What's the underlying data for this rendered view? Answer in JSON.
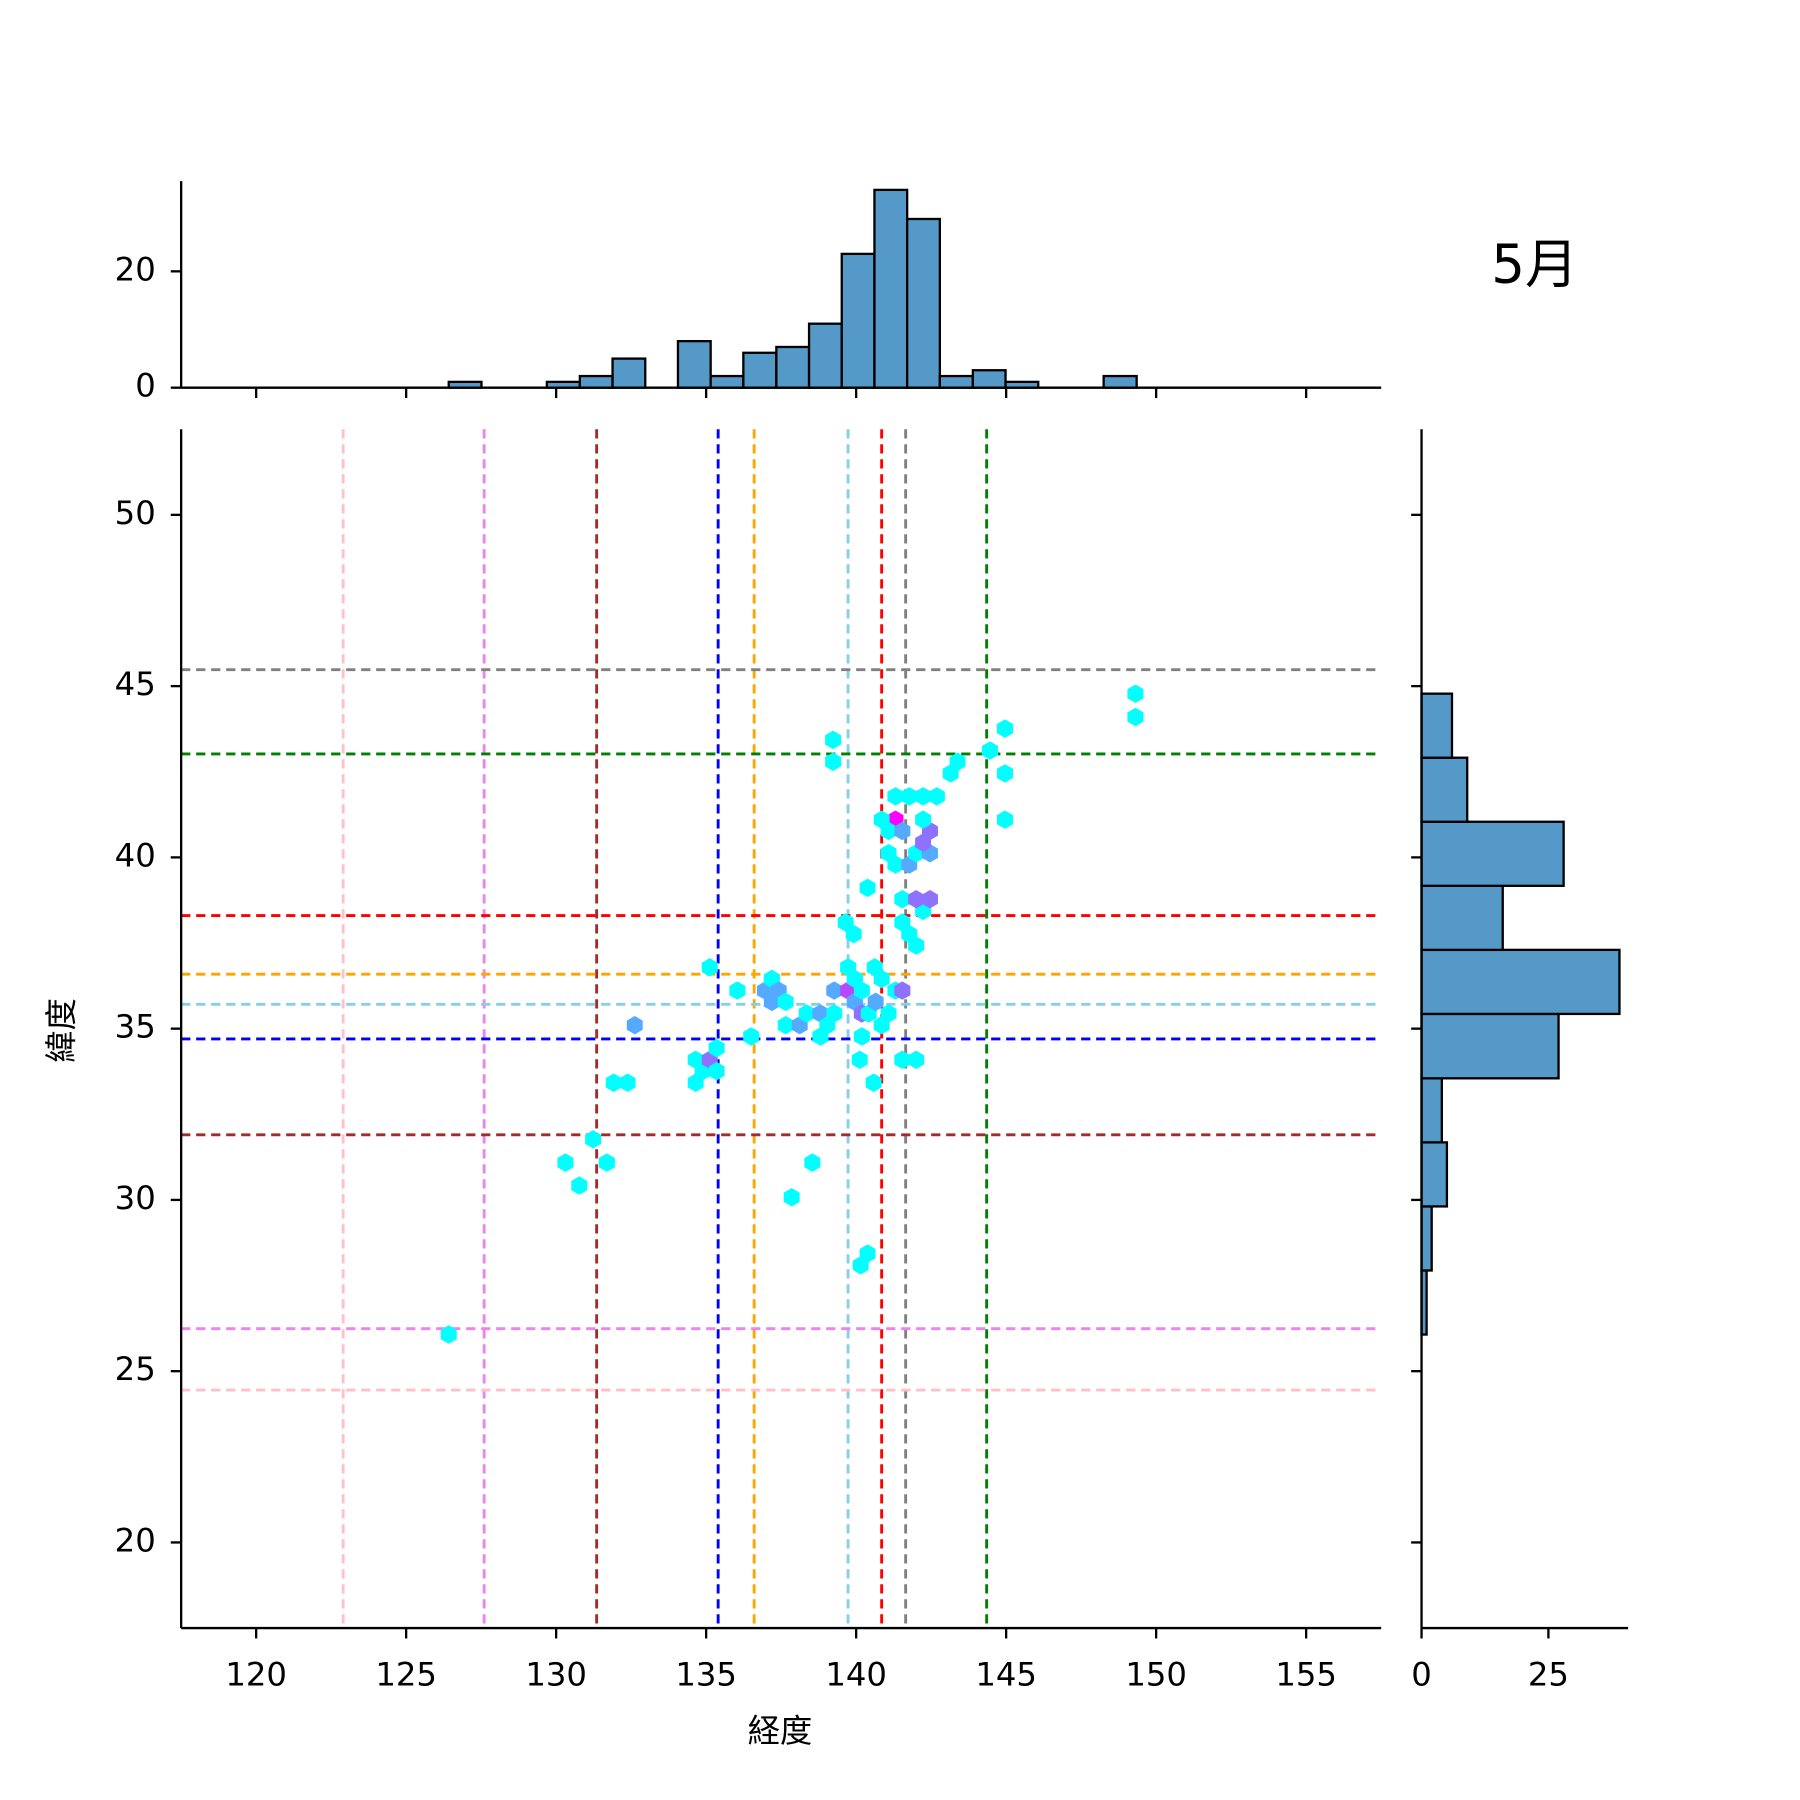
{
  "chart_data": [
    {
      "type": "histogram",
      "orientation": "vertical",
      "color": "#5499c7",
      "bins": [
        126.42,
        127.51,
        128.6,
        129.69,
        130.79,
        131.88,
        132.97,
        134.06,
        135.15,
        136.24,
        137.34,
        138.43,
        139.52,
        140.61,
        141.7,
        142.79,
        143.89,
        144.98,
        146.07,
        147.16,
        148.25,
        149.35
      ],
      "values": [
        1,
        0,
        0,
        1,
        2,
        5,
        0,
        8,
        2,
        6,
        7,
        11,
        23,
        34,
        29,
        2,
        3,
        1,
        0,
        0,
        2
      ],
      "ylim": [
        0,
        35.5
      ],
      "yticks": [
        0,
        20
      ]
    },
    {
      "type": "hexbin",
      "title": "5月",
      "xlabel": "経度",
      "ylabel": "緯度",
      "xlim": [
        117.5,
        157.5
      ],
      "ylim": [
        17.5,
        52.5
      ],
      "xticks": [
        120,
        125,
        130,
        135,
        140,
        145,
        150,
        155
      ],
      "yticks": [
        20,
        25,
        30,
        35,
        40,
        45,
        50
      ],
      "x": [
        126.42,
        130.31,
        130.77,
        131.23,
        131.69,
        131.92,
        132.38,
        132.62,
        134.65,
        134.65,
        134.88,
        135.12,
        135.35,
        135.35,
        135.12,
        136.04,
        136.5,
        136.96,
        137.19,
        137.19,
        137.42,
        137.65,
        137.65,
        138.12,
        138.35,
        138.81,
        138.81,
        139.04,
        139.27,
        139.27,
        139.73,
        139.96,
        140.19,
        140.42,
        140.65,
        140.19,
        139.73,
        139.96,
        139.65,
        139.92,
        140.38,
        140.12,
        140.58,
        140.19,
        140.62,
        140.85,
        141.08,
        140.85,
        141.31,
        141.54,
        141.54,
        142.0,
        141.54,
        141.54,
        141.77,
        142.0,
        142.23,
        142.0,
        142.46,
        141.31,
        141.08,
        141.77,
        142.0,
        142.46,
        142.23,
        142.46,
        142.23,
        141.31,
        140.85,
        141.08,
        141.54,
        141.31,
        141.77,
        142.23,
        142.69,
        143.15,
        143.38,
        144.46,
        144.96,
        144.96,
        144.96,
        139.23,
        139.23,
        149.31,
        149.31,
        138.54,
        137.85,
        140.38,
        140.15
      ],
      "y": [
        26.07,
        31.09,
        30.42,
        31.77,
        31.09,
        33.42,
        33.42,
        35.1,
        33.42,
        34.09,
        33.76,
        34.09,
        33.76,
        34.43,
        36.79,
        36.11,
        34.77,
        36.11,
        36.45,
        35.78,
        36.11,
        35.78,
        35.1,
        35.1,
        35.44,
        35.44,
        34.77,
        35.1,
        35.44,
        36.11,
        36.11,
        35.78,
        35.44,
        35.44,
        35.78,
        36.11,
        36.79,
        36.45,
        38.1,
        37.76,
        39.11,
        34.09,
        33.42,
        34.77,
        36.79,
        35.1,
        35.44,
        36.45,
        36.11,
        36.11,
        34.09,
        34.09,
        38.78,
        38.1,
        37.76,
        37.43,
        38.44,
        38.78,
        38.78,
        39.79,
        40.12,
        39.79,
        40.12,
        40.12,
        40.43,
        40.77,
        41.1,
        41.1,
        41.1,
        40.77,
        40.77,
        41.78,
        41.78,
        41.78,
        41.78,
        42.45,
        42.79,
        43.12,
        43.76,
        42.45,
        41.1,
        42.79,
        43.43,
        44.78,
        44.1,
        31.09,
        30.08,
        28.43,
        28.09
      ],
      "colors": [
        "#00ffff",
        "#00ffff",
        "#00ffff",
        "#00ffff",
        "#00ffff",
        "#00ffff",
        "#00ffff",
        "#55aaff",
        "#00ffff",
        "#00ffff",
        "#00ffff",
        "#8e71ff",
        "#00ffff",
        "#00ffff",
        "#00ffff",
        "#00ffff",
        "#00ffff",
        "#55aaff",
        "#00ffff",
        "#55aaff",
        "#55aaff",
        "#00ffff",
        "#00ffff",
        "#55aaff",
        "#00ffff",
        "#55aaff",
        "#00ffff",
        "#00ffff",
        "#00ffff",
        "#55aaff",
        "#b947ff",
        "#55aaff",
        "#8e71ff",
        "#00ffff",
        "#55aaff",
        "#00ffff",
        "#00ffff",
        "#00ffff",
        "#00ffff",
        "#00ffff",
        "#00ffff",
        "#00ffff",
        "#00ffff",
        "#00ffff",
        "#00ffff",
        "#00ffff",
        "#00ffff",
        "#00ffff",
        "#00ffff",
        "#8e71ff",
        "#00ffff",
        "#00ffff",
        "#00ffff",
        "#00ffff",
        "#00ffff",
        "#00ffff",
        "#00ffff",
        "#8e71ff",
        "#8e71ff",
        "#00ffff",
        "#00ffff",
        "#55aaff",
        "#00ffff",
        "#55aaff",
        "#8e71ff",
        "#8e71ff",
        "#00ffff",
        "#ff00ff",
        "#00ffff",
        "#00ffff",
        "#55aaff",
        "#00ffff",
        "#00ffff",
        "#00ffff",
        "#00ffff",
        "#00ffff",
        "#00ffff",
        "#00ffff",
        "#00ffff",
        "#00ffff",
        "#00ffff",
        "#00ffff",
        "#00ffff",
        "#00ffff",
        "#00ffff",
        "#00ffff",
        "#00ffff",
        "#00ffff",
        "#00ffff"
      ],
      "vlines": {
        "values": [
          122.9,
          127.6,
          131.35,
          135.4,
          136.6,
          139.73,
          140.85,
          141.65,
          144.35
        ],
        "colors": [
          "#ffc0cb",
          "#ee82ee",
          "#a52a2a",
          "#0000ff",
          "#ffa500",
          "#87ceeb",
          "#ff0000",
          "#808080",
          "#008000"
        ]
      },
      "hlines": {
        "values": [
          45.48,
          43.02,
          38.3,
          36.59,
          35.71,
          34.7,
          31.9,
          26.24,
          24.45
        ],
        "colors": [
          "#808080",
          "#008000",
          "#ff0000",
          "#ffa500",
          "#87ceeb",
          "#0000ff",
          "#a52a2a",
          "#ee82ee",
          "#ffc0cb"
        ]
      }
    },
    {
      "type": "histogram",
      "orientation": "horizontal",
      "color": "#5499c7",
      "bins": [
        26.07,
        27.94,
        29.81,
        31.68,
        33.55,
        35.43,
        37.3,
        39.17,
        41.04,
        42.91,
        44.78
      ],
      "values": [
        1,
        2,
        5,
        4,
        27,
        39,
        16,
        28,
        9,
        6
      ],
      "xlim": [
        0,
        40.7
      ],
      "xticks": [
        0,
        25
      ]
    }
  ]
}
